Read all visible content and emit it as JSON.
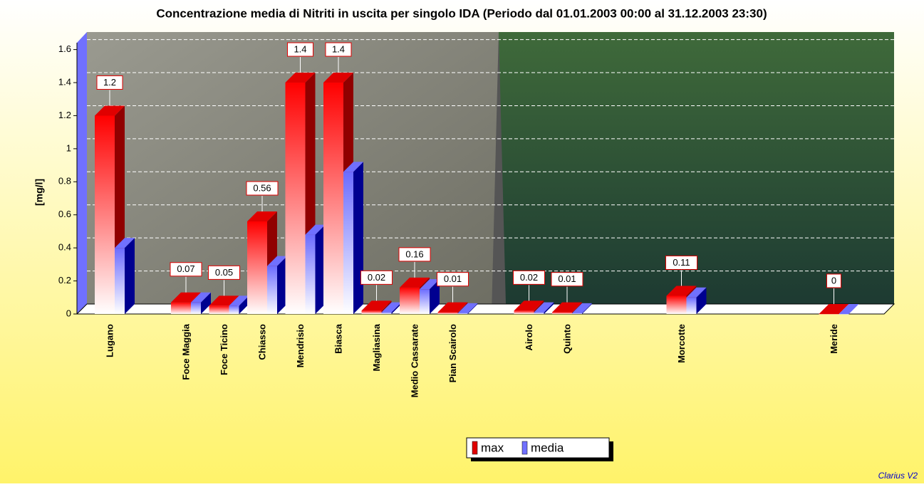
{
  "chart_data": {
    "type": "bar3d",
    "title": "Concentrazione media di Nitriti in uscita per singolo IDA (Periodo dal 01.01.2003 00:00 al 31.12.2003 23:30)",
    "y_label": "[mg/l]",
    "categories": [
      "Lugano",
      null,
      "Foce Maggia",
      "Foce Ticino",
      "Chiasso",
      "Mendrisio",
      "Biasca",
      "Magliasina",
      "Medio Cassarate",
      "Pian Scairolo",
      null,
      "Airolo",
      "Quinto",
      null,
      null,
      "Morcotte",
      null,
      null,
      null,
      "Meride"
    ],
    "series": [
      {
        "name": "max",
        "color": "#e00000",
        "values": [
          1.2,
          null,
          0.07,
          0.05,
          0.56,
          1.4,
          1.4,
          0.02,
          0.16,
          0.01,
          null,
          0.02,
          0.01,
          null,
          null,
          0.11,
          null,
          null,
          null,
          0
        ]
      },
      {
        "name": "media",
        "color": "#7070ff",
        "values": [
          0.4,
          null,
          0.07,
          0.05,
          0.29,
          0.48,
          0.86,
          0.01,
          0.15,
          0.005,
          null,
          0.01,
          0.005,
          null,
          null,
          0.1,
          null,
          null,
          null,
          0
        ]
      }
    ],
    "ylim": [
      0,
      1.65
    ],
    "yticks": [
      0,
      0.2,
      0.4,
      0.6,
      0.8,
      1,
      1.2,
      1.4,
      1.6
    ],
    "grid": true,
    "footer": "Clarius V2"
  }
}
